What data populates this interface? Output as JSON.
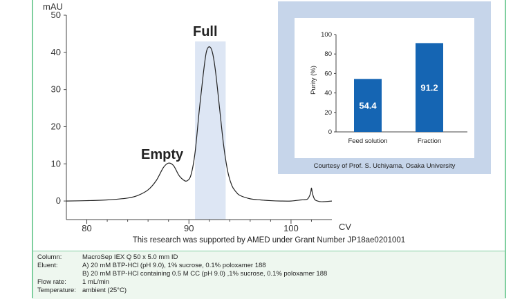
{
  "chart_data": [
    {
      "type": "line",
      "title": "",
      "ylabel": "mAU",
      "xlabel": "CV",
      "xlim": [
        78,
        104
      ],
      "ylim": [
        -5,
        50
      ],
      "x_ticks": [
        80,
        90,
        100
      ],
      "y_ticks": [
        0,
        10,
        20,
        30,
        40,
        50
      ],
      "highlight_region": [
        90.6,
        93.6
      ],
      "annotations": [
        {
          "text": "Empty",
          "x": 88,
          "y": 13
        },
        {
          "text": "Full",
          "x": 92,
          "y": 45
        }
      ],
      "series": [
        {
          "x": [
            78,
            80,
            82,
            84,
            85,
            86,
            86.8,
            87.5,
            88,
            88.5,
            89,
            89.4,
            89.8,
            90.2,
            90.6,
            91,
            91.4,
            91.7,
            92,
            92.3,
            92.6,
            93,
            93.4,
            93.8,
            94.2,
            94.6,
            95,
            96,
            97,
            98,
            99,
            100,
            101,
            101.6,
            101.9,
            102,
            102.1,
            102.3,
            102.5,
            103,
            104
          ],
          "y": [
            0,
            0.1,
            0.3,
            0.8,
            1.5,
            3,
            5.5,
            9,
            10.2,
            9.5,
            7,
            5.8,
            5.4,
            7,
            13,
            24,
            34,
            40,
            41.5,
            40,
            35,
            25,
            15,
            8,
            4.2,
            2.5,
            1.5,
            0.6,
            0.3,
            0.1,
            0,
            0,
            0.3,
            0.5,
            2,
            3.5,
            2,
            0.5,
            0.1,
            -0.2,
            0
          ]
        }
      ]
    },
    {
      "type": "bar",
      "title": "",
      "ylabel": "Purity (%)",
      "xlabel": "",
      "ylim": [
        0,
        100
      ],
      "y_ticks": [
        0,
        20,
        40,
        60,
        80,
        100
      ],
      "categories": [
        "Feed solution",
        "Fraction"
      ],
      "values": [
        54.4,
        91.2
      ],
      "bar_color": "#1565b3"
    }
  ],
  "labels": {
    "chrom_y_unit": "mAU",
    "chrom_x_unit": "CV",
    "empty_label": "Empty",
    "full_label": "Full",
    "bar_value_1": "54.4",
    "bar_value_2": "91.2",
    "inset_ylabel": "Purity (%)",
    "inset_credit": "Courtesy of Prof. S. Uchiyama, Osaka University",
    "support_note": "This research was supported by AMED under Grant Number JP18ae0201001"
  },
  "conditions": [
    {
      "label": "Column:",
      "value": "MacroSep IEX Q 50 x 5.0 mm ID"
    },
    {
      "label": "Eluent:",
      "value": "A) 20 mM BTP-HCl (pH 9.0), 1% sucrose, 0.1% poloxamer 188"
    },
    {
      "label": "",
      "value": "B) 20 mM BTP-HCl containing 0.5 M CC (pH 9.0) ,1% sucrose, 0.1% poloxamer 188"
    },
    {
      "label": "Flow rate:",
      "value": "1 mL/min"
    },
    {
      "label": "Temperature:",
      "value": "ambient (25°C)"
    }
  ],
  "colors": {
    "highlight": "#dde6f4",
    "inset_background": "#c6d5ea",
    "bar": "#1565b3",
    "frame": "#7fcf9f",
    "conditions_background": "#eef7ef"
  }
}
